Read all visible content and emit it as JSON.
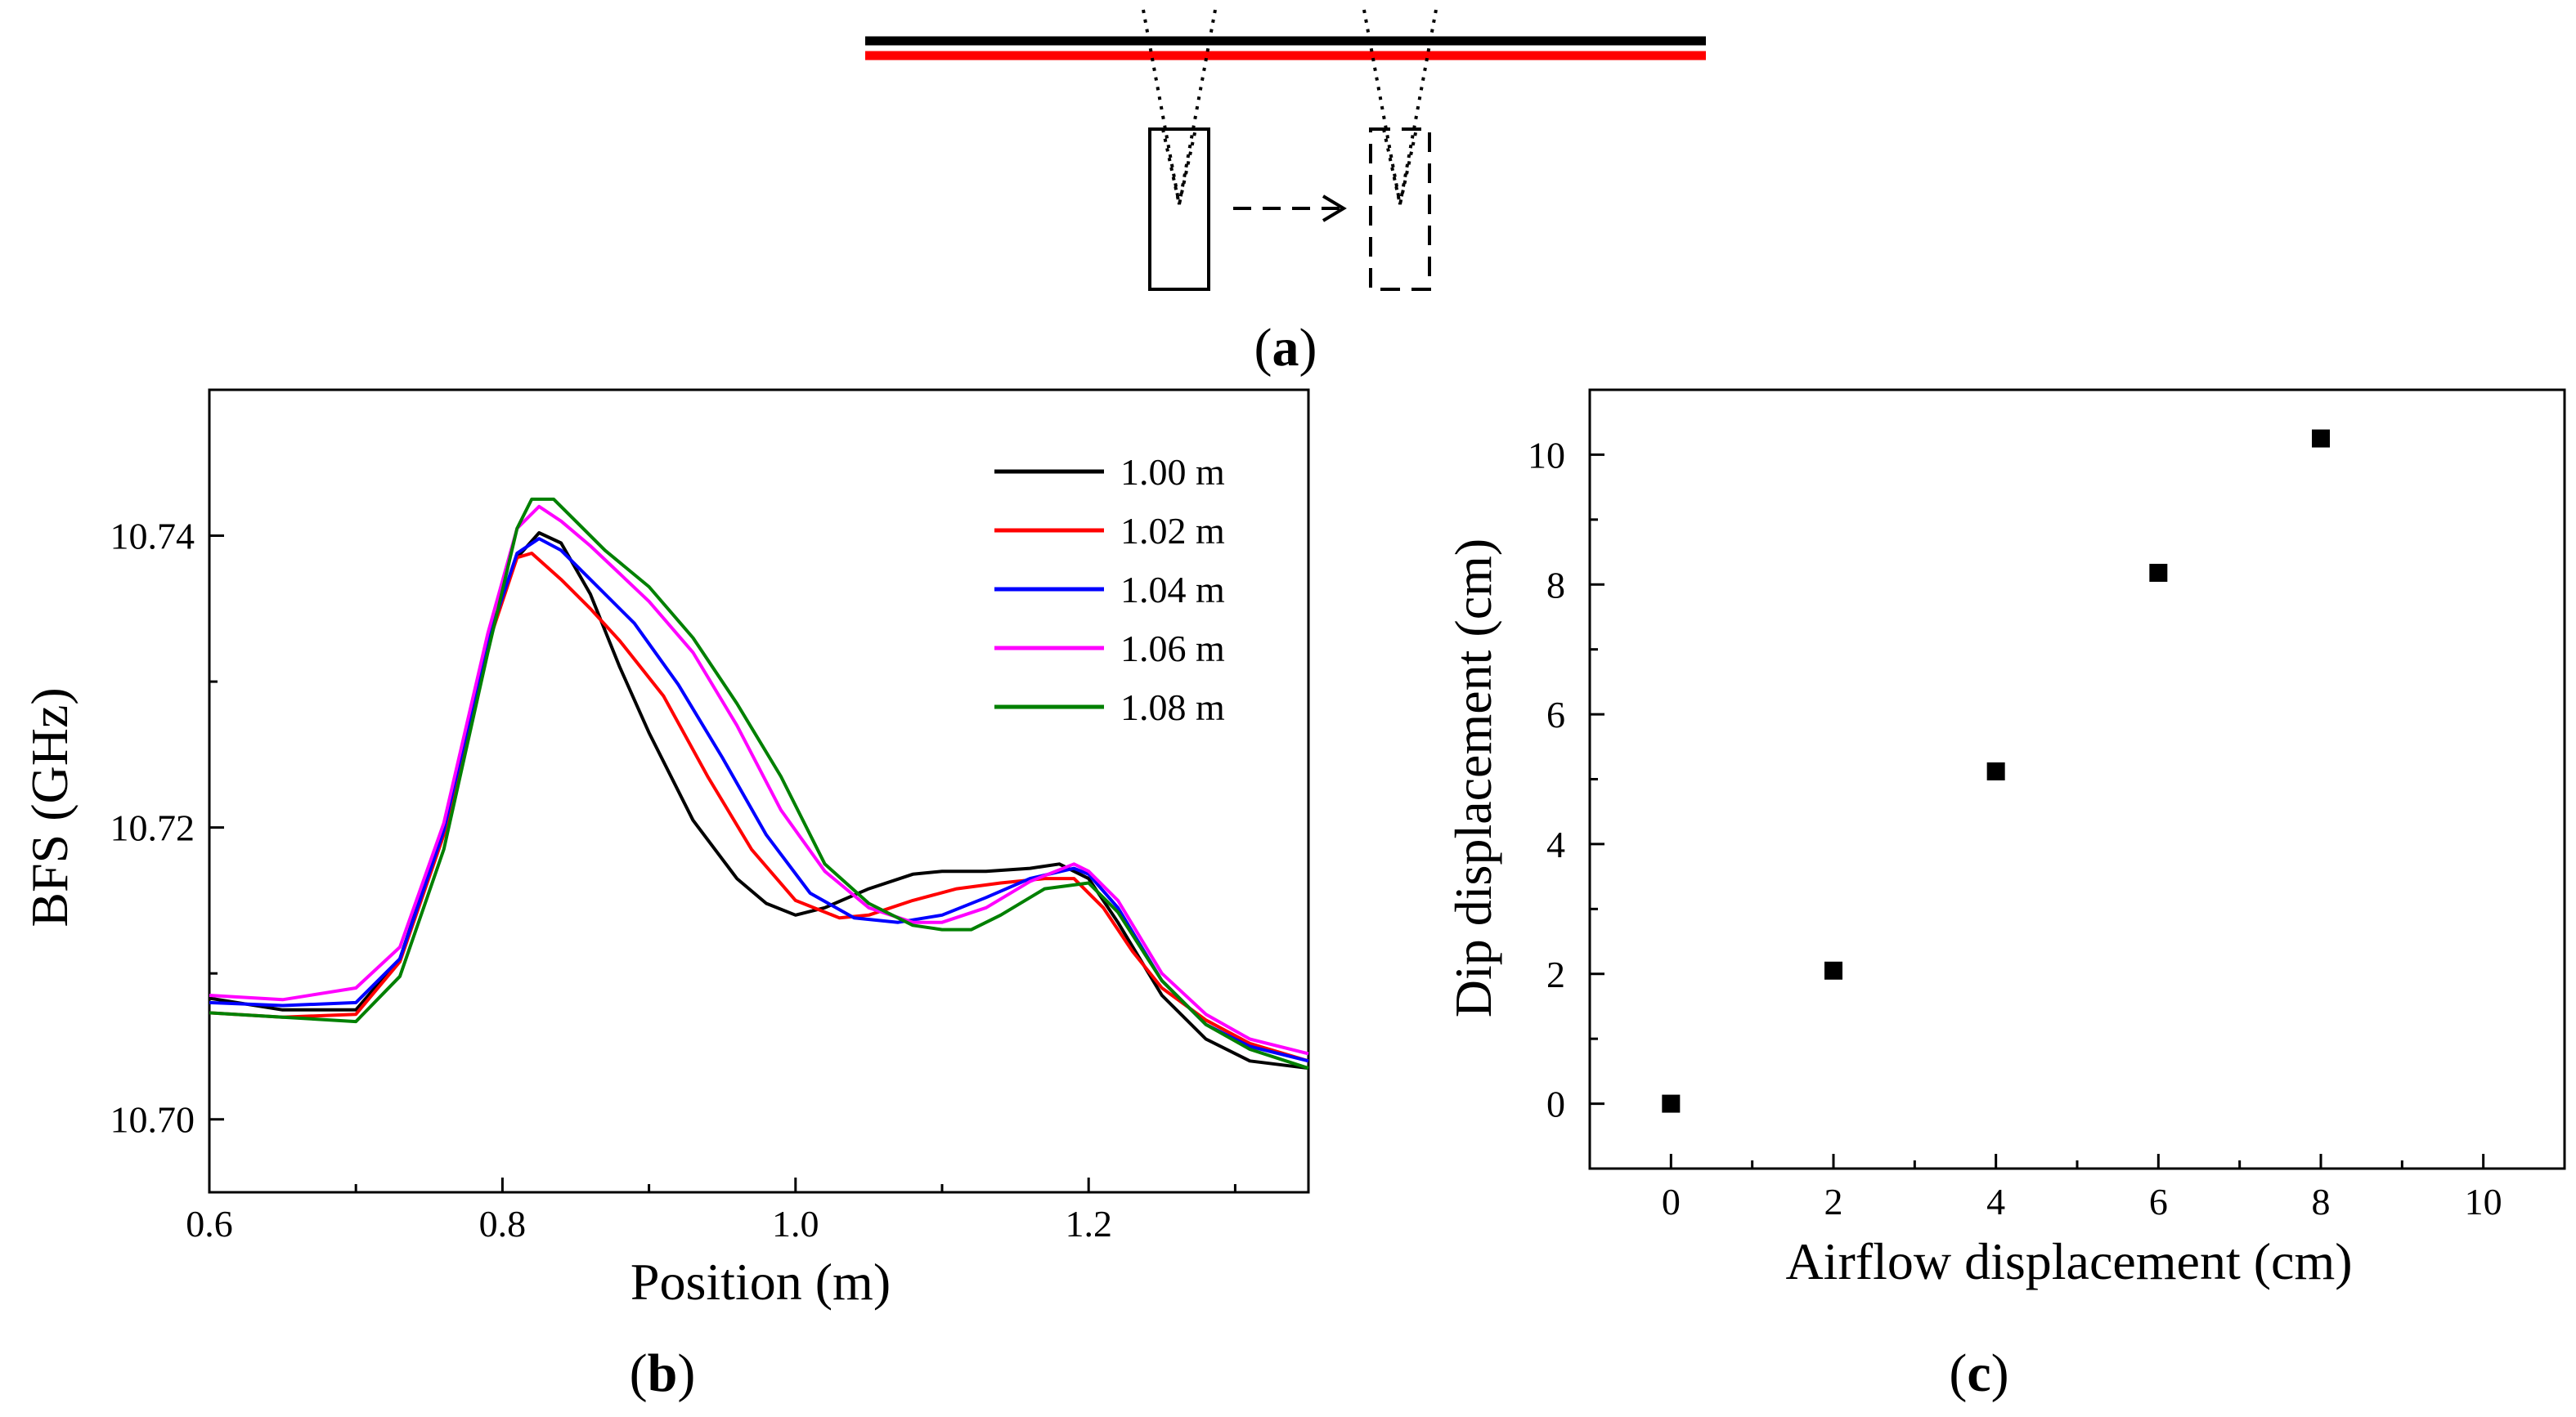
{
  "panels": {
    "a": {
      "label": "a"
    },
    "b": {
      "label": "b"
    },
    "c": {
      "label": "c"
    }
  },
  "diagram": {
    "fiber_colors": [
      "#000000",
      "#ff0000"
    ]
  },
  "chart_data": [
    {
      "panel": "b",
      "type": "line",
      "xlabel": "Position (m)",
      "ylabel": "BFS (GHz)",
      "xlim": [
        0.6,
        1.35
      ],
      "ylim": [
        10.695,
        10.75
      ],
      "xticks": [
        0.6,
        0.8,
        1.0,
        1.2
      ],
      "xtick_labels": [
        "0.6",
        "0.8",
        "1.0",
        "1.2"
      ],
      "yticks": [
        10.7,
        10.72,
        10.74
      ],
      "ytick_labels": [
        "10.70",
        "10.72",
        "10.74"
      ],
      "legend_position": "top-right",
      "grid": false,
      "series": [
        {
          "name": "1.00 m",
          "color": "#000000",
          "x": [
            0.6,
            0.65,
            0.7,
            0.73,
            0.76,
            0.79,
            0.81,
            0.825,
            0.84,
            0.86,
            0.88,
            0.9,
            0.93,
            0.96,
            0.98,
            1.0,
            1.02,
            1.05,
            1.08,
            1.1,
            1.13,
            1.16,
            1.18,
            1.2,
            1.22,
            1.25,
            1.28,
            1.31,
            1.35
          ],
          "y": [
            10.7083,
            10.7075,
            10.7075,
            10.711,
            10.72,
            10.733,
            10.7385,
            10.7402,
            10.7395,
            10.736,
            10.731,
            10.7265,
            10.7205,
            10.7165,
            10.7148,
            10.714,
            10.7145,
            10.7158,
            10.7168,
            10.717,
            10.717,
            10.7172,
            10.7175,
            10.7165,
            10.7135,
            10.7085,
            10.7055,
            10.704,
            10.7035
          ]
        },
        {
          "name": "1.02 m",
          "color": "#ff0000",
          "x": [
            0.6,
            0.65,
            0.7,
            0.73,
            0.76,
            0.79,
            0.81,
            0.82,
            0.84,
            0.86,
            0.88,
            0.91,
            0.94,
            0.97,
            1.0,
            1.03,
            1.05,
            1.08,
            1.11,
            1.14,
            1.17,
            1.19,
            1.21,
            1.23,
            1.25,
            1.28,
            1.31,
            1.35
          ],
          "y": [
            10.7073,
            10.707,
            10.7072,
            10.7108,
            10.7195,
            10.7325,
            10.7385,
            10.7388,
            10.737,
            10.735,
            10.7328,
            10.729,
            10.7235,
            10.7185,
            10.715,
            10.7138,
            10.714,
            10.715,
            10.7158,
            10.7162,
            10.7165,
            10.7165,
            10.7145,
            10.7115,
            10.709,
            10.7068,
            10.7052,
            10.704
          ]
        },
        {
          "name": "1.04 m",
          "color": "#0000ff",
          "x": [
            0.6,
            0.65,
            0.7,
            0.73,
            0.76,
            0.79,
            0.81,
            0.825,
            0.84,
            0.86,
            0.89,
            0.92,
            0.95,
            0.98,
            1.01,
            1.04,
            1.07,
            1.1,
            1.13,
            1.16,
            1.19,
            1.2,
            1.22,
            1.25,
            1.28,
            1.31,
            1.35
          ],
          "y": [
            10.708,
            10.7078,
            10.708,
            10.711,
            10.7198,
            10.7328,
            10.7388,
            10.7398,
            10.739,
            10.737,
            10.734,
            10.7298,
            10.7248,
            10.7195,
            10.7155,
            10.7138,
            10.7135,
            10.714,
            10.7152,
            10.7165,
            10.7172,
            10.7168,
            10.7145,
            10.7095,
            10.7065,
            10.705,
            10.704
          ]
        },
        {
          "name": "1.06 m",
          "color": "#ff00ff",
          "x": [
            0.6,
            0.65,
            0.7,
            0.73,
            0.76,
            0.79,
            0.81,
            0.825,
            0.84,
            0.86,
            0.9,
            0.93,
            0.96,
            0.99,
            1.02,
            1.05,
            1.08,
            1.1,
            1.13,
            1.16,
            1.19,
            1.2,
            1.22,
            1.25,
            1.28,
            1.31,
            1.35
          ],
          "y": [
            10.7085,
            10.7082,
            10.709,
            10.7118,
            10.7203,
            10.7333,
            10.7405,
            10.742,
            10.741,
            10.7393,
            10.7355,
            10.732,
            10.727,
            10.7212,
            10.717,
            10.7145,
            10.7135,
            10.7135,
            10.7145,
            10.7163,
            10.7175,
            10.717,
            10.715,
            10.71,
            10.7072,
            10.7055,
            10.7045
          ]
        },
        {
          "name": "1.08 m",
          "color": "#008000",
          "x": [
            0.6,
            0.65,
            0.7,
            0.73,
            0.76,
            0.79,
            0.81,
            0.82,
            0.835,
            0.85,
            0.87,
            0.9,
            0.93,
            0.96,
            0.99,
            1.02,
            1.05,
            1.08,
            1.1,
            1.12,
            1.14,
            1.17,
            1.2,
            1.22,
            1.25,
            1.28,
            1.31,
            1.35
          ],
          "y": [
            10.7073,
            10.707,
            10.7067,
            10.7098,
            10.7185,
            10.732,
            10.7405,
            10.7425,
            10.7425,
            10.741,
            10.739,
            10.7365,
            10.733,
            10.7285,
            10.7235,
            10.7175,
            10.7148,
            10.7133,
            10.713,
            10.713,
            10.714,
            10.7158,
            10.7162,
            10.7142,
            10.7095,
            10.7065,
            10.7048,
            10.7035
          ]
        }
      ]
    },
    {
      "panel": "c",
      "type": "scatter",
      "xlabel": "Airflow displacement (cm)",
      "ylabel": "Dip displacement (cm)",
      "xlim": [
        -1,
        11
      ],
      "ylim": [
        -1,
        11
      ],
      "xticks": [
        0,
        2,
        4,
        6,
        8,
        10
      ],
      "xtick_labels": [
        "0",
        "2",
        "4",
        "6",
        "8",
        "10"
      ],
      "yticks": [
        0,
        2,
        4,
        6,
        8,
        10
      ],
      "ytick_labels": [
        "0",
        "2",
        "4",
        "6",
        "8",
        "10"
      ],
      "grid": false,
      "marker": "square",
      "color": "#000000",
      "x": [
        0,
        2,
        4,
        6,
        8
      ],
      "y": [
        0,
        2.05,
        5.12,
        8.18,
        10.25
      ]
    }
  ]
}
